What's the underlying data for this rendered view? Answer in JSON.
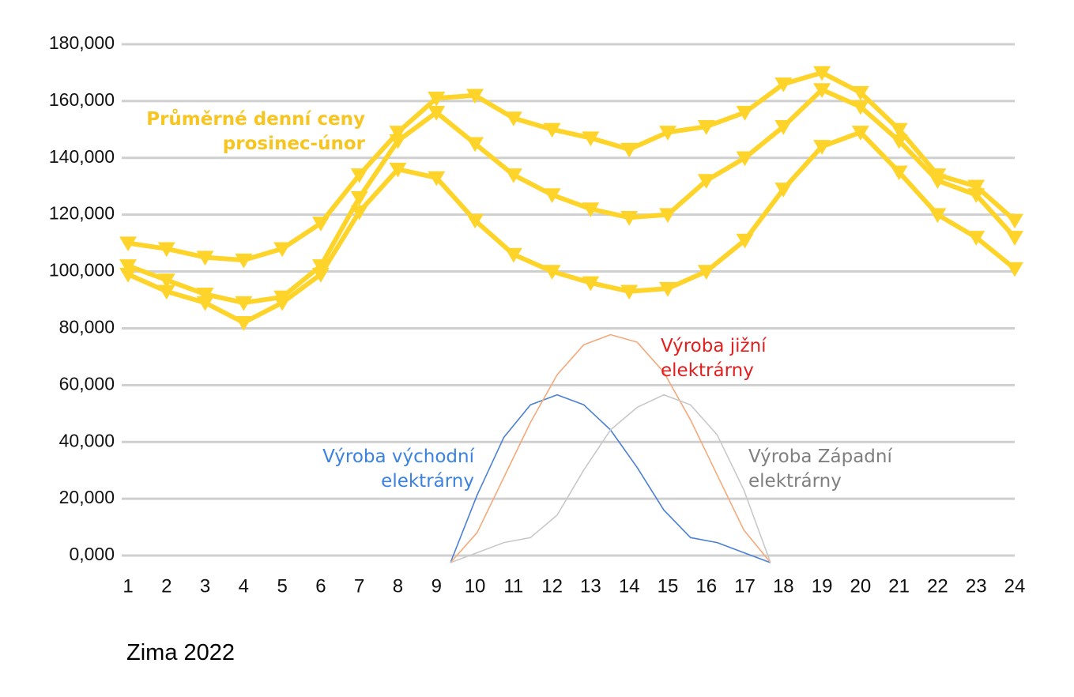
{
  "chart_data": [
    {
      "type": "line",
      "categories": [
        "1",
        "2",
        "3",
        "4",
        "5",
        "6",
        "7",
        "8",
        "9",
        "10",
        "11",
        "12",
        "13",
        "14",
        "15",
        "16",
        "17",
        "18",
        "19",
        "20",
        "21",
        "22",
        "23",
        "24"
      ],
      "series": [
        {
          "color": "#ffd42a",
          "values": [
            110000,
            108000,
            105000,
            104000,
            108000,
            117000,
            134000,
            149000,
            161000,
            162000,
            154000,
            150000,
            147000,
            143000,
            149000,
            151000,
            156000,
            166000,
            170000,
            163000,
            150000,
            134000,
            130000,
            118000
          ]
        },
        {
          "color": "#ffd42a",
          "values": [
            102000,
            97000,
            92000,
            89000,
            91000,
            102000,
            126000,
            146000,
            156000,
            145000,
            134000,
            127000,
            122000,
            119000,
            120000,
            132000,
            140000,
            151000,
            164000,
            158000,
            146000,
            132000,
            127000,
            112000
          ]
        },
        {
          "color": "#ffd42a",
          "values": [
            99000,
            93000,
            89000,
            82000,
            89000,
            99000,
            121000,
            136000,
            133000,
            118000,
            106000,
            100000,
            96000,
            93000,
            94000,
            100000,
            111000,
            129000,
            144000,
            149000,
            135000,
            120000,
            112000,
            101000
          ]
        }
      ],
      "ylim": [
        0,
        180000
      ],
      "yticks": [
        {
          "value": 0,
          "label": "0,000"
        },
        {
          "value": 20000,
          "label": "20,000"
        },
        {
          "value": 40000,
          "label": "40,000"
        },
        {
          "value": 60000,
          "label": "60,000"
        },
        {
          "value": 80000,
          "label": "80,000"
        },
        {
          "value": 100000,
          "label": "100,000"
        },
        {
          "value": 120000,
          "label": "120,000"
        },
        {
          "value": 140000,
          "label": "140,000"
        },
        {
          "value": 160000,
          "label": "160,000"
        },
        {
          "value": 180000,
          "label": "180,000"
        }
      ],
      "grid": true,
      "marker": "triangle-down",
      "annotation": {
        "text": "Průměrné denní ceny prosinec-únor",
        "color": "#f7c520"
      },
      "subtitle": "Zima 2022"
    },
    {
      "type": "line",
      "categories": [
        null,
        null,
        null,
        null,
        null,
        null,
        null,
        null,
        null,
        null,
        null,
        null,
        null
      ],
      "series": [
        {
          "name": "Výroba východní elektrárny",
          "color": "#4a7fd4",
          "label_color": "#3b82e0",
          "values": [
            0,
            27,
            50,
            63,
            67,
            63,
            53,
            38,
            21,
            10,
            8,
            4,
            0
          ]
        },
        {
          "name": "Výroba jižní elektrárny",
          "color": "#f4a97a",
          "label_color": "#e31e1e",
          "values": [
            0,
            12,
            34,
            56,
            75,
            87,
            91,
            88,
            76,
            57,
            35,
            13,
            0
          ]
        },
        {
          "name": "Výroba Západní elektrárny",
          "color": "#c8c8c8",
          "label_color": "#7f7f7f",
          "values": [
            0,
            4,
            8,
            10,
            19,
            37,
            53,
            62,
            67,
            63,
            51,
            29,
            0
          ]
        }
      ],
      "ylim": [
        0,
        100
      ]
    }
  ]
}
